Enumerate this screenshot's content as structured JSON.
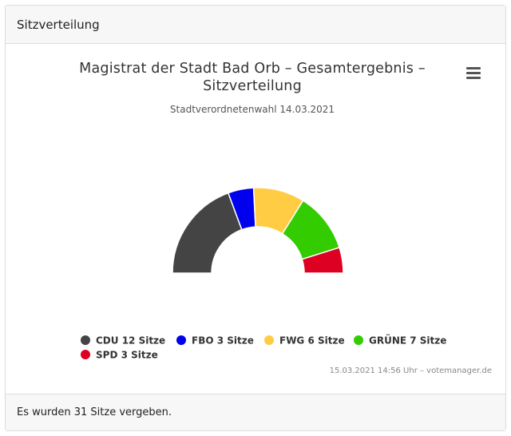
{
  "panel": {
    "header_title": "Sitzverteilung",
    "footer_text": "Es wurden 31 Sitze vergeben."
  },
  "chart_data": {
    "type": "pie",
    "variant": "semi-circle",
    "title": "Magistrat der Stadt Bad Orb – Gesamtergebnis – Sitzverteilung",
    "subtitle": "Stadtverordnetenwahl 14.03.2021",
    "total": 31,
    "slices": [
      {
        "name": "CDU",
        "value": 12,
        "color": "#444444",
        "legend": "CDU 12 Sitze"
      },
      {
        "name": "FBO",
        "value": 3,
        "color": "#0000ee",
        "legend": "FBO 3 Sitze"
      },
      {
        "name": "FWG",
        "value": 6,
        "color": "#ffcc44",
        "legend": "FWG 6 Sitze"
      },
      {
        "name": "GRÜNE",
        "value": 7,
        "color": "#33cc00",
        "legend": "GRÜNE 7 Sitze"
      },
      {
        "name": "SPD",
        "value": 3,
        "color": "#dd0022",
        "legend": "SPD 3 Sitze"
      }
    ],
    "credits": "15.03.2021 14:56 Uhr – votemanager.de",
    "legend_position": "bottom"
  },
  "icons": {
    "menu": "hamburger-menu-icon"
  }
}
